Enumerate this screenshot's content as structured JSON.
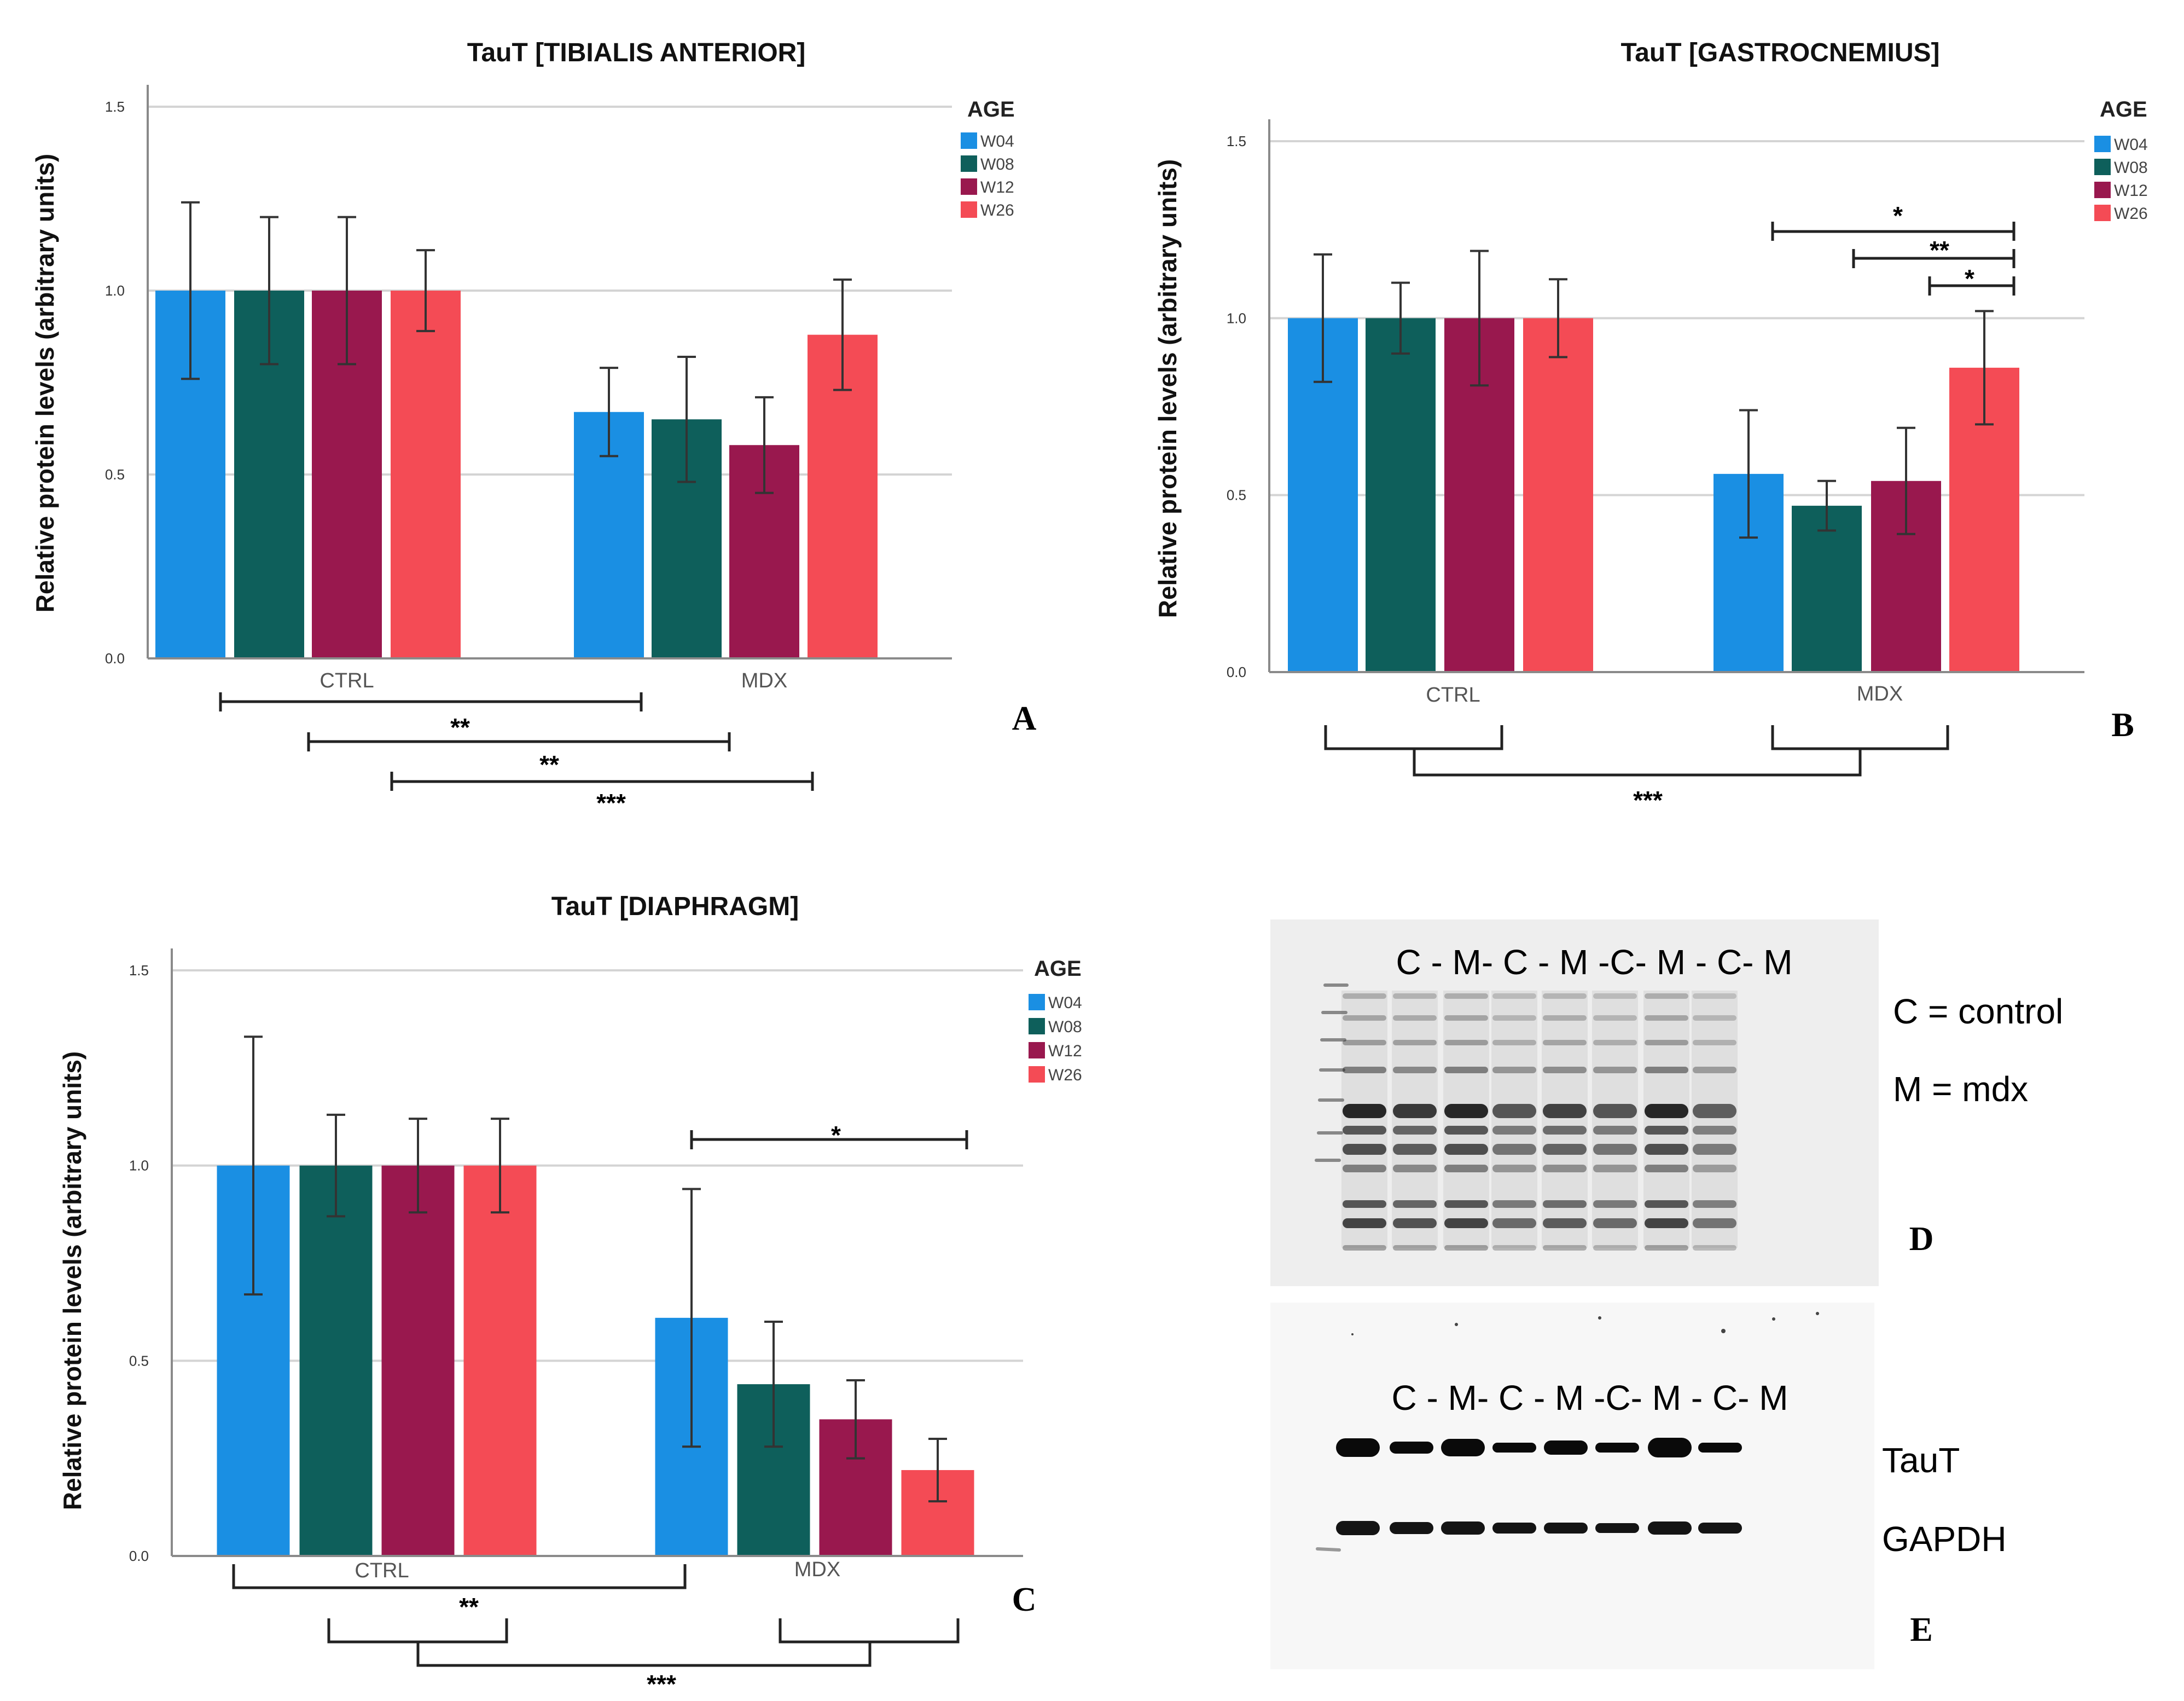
{
  "chart_data": [
    {
      "type": "bar",
      "panel": "A",
      "title": "TauT [TIBIALIS ANTERIOR]",
      "xlabel": "",
      "ylabel": "Relative protein levels (arbitrary units)",
      "ylim": [
        0,
        1.5
      ],
      "yticks": [
        "0.0",
        "0.5",
        "1.0",
        "1.5"
      ],
      "categories": [
        "CTRL",
        "MDX"
      ],
      "legend_title": "AGE",
      "legend_position": "top-right",
      "series": [
        {
          "name": "W04",
          "values": [
            1.0,
            0.67
          ],
          "err": [
            0.24,
            0.12
          ]
        },
        {
          "name": "W08",
          "values": [
            1.0,
            0.65
          ],
          "err": [
            0.2,
            0.17
          ]
        },
        {
          "name": "W12",
          "values": [
            1.0,
            0.58
          ],
          "err": [
            0.2,
            0.13
          ]
        },
        {
          "name": "W26",
          "values": [
            1.0,
            0.88
          ],
          "err": [
            0.11,
            0.15
          ]
        }
      ],
      "significance": [
        "**",
        "**",
        "***"
      ]
    },
    {
      "type": "bar",
      "panel": "B",
      "title": "TauT [GASTROCNEMIUS]",
      "xlabel": "",
      "ylabel": "Relative protein levels (arbitrary units)",
      "ylim": [
        0,
        1.5
      ],
      "yticks": [
        "0.0",
        "0.5",
        "1.0",
        "1.5"
      ],
      "categories": [
        "CTRL",
        "MDX"
      ],
      "legend_title": "AGE",
      "legend_position": "top-right",
      "series": [
        {
          "name": "W04",
          "values": [
            1.0,
            0.56
          ],
          "err": [
            0.18,
            0.18
          ]
        },
        {
          "name": "W08",
          "values": [
            1.0,
            0.47
          ],
          "err": [
            0.1,
            0.07
          ]
        },
        {
          "name": "W12",
          "values": [
            1.0,
            0.54
          ],
          "err": [
            0.19,
            0.15
          ]
        },
        {
          "name": "W26",
          "values": [
            1.0,
            0.86
          ],
          "err": [
            0.11,
            0.16
          ]
        }
      ],
      "significance": [
        "*",
        "**",
        "*",
        "***"
      ]
    },
    {
      "type": "bar",
      "panel": "C",
      "title": "TauT [DIAPHRAGM]",
      "xlabel": "",
      "ylabel": "Relative protein levels (arbitrary units)",
      "ylim": [
        0,
        1.5
      ],
      "yticks": [
        "0.0",
        "0.5",
        "1.0",
        "1.5"
      ],
      "categories": [
        "CTRL",
        "MDX"
      ],
      "legend_title": "AGE",
      "legend_position": "top-right",
      "series": [
        {
          "name": "W04",
          "values": [
            1.0,
            0.61
          ],
          "err": [
            0.33,
            0.33
          ]
        },
        {
          "name": "W08",
          "values": [
            1.0,
            0.44
          ],
          "err": [
            0.13,
            0.16
          ]
        },
        {
          "name": "W12",
          "values": [
            1.0,
            0.35
          ],
          "err": [
            0.12,
            0.1
          ]
        },
        {
          "name": "W26",
          "values": [
            1.0,
            0.22
          ],
          "err": [
            0.12,
            0.08
          ]
        }
      ],
      "significance": [
        "*",
        "**",
        "***"
      ]
    }
  ],
  "colors": {
    "W04": "#1A8FE3",
    "W08": "#0E5F5B",
    "W12": "#99184E",
    "W26": "#F44B55",
    "grid": "#d4d4d4",
    "axis": "#8a8a8a"
  },
  "blots": {
    "D": {
      "panel": "D",
      "lane_labels": "C - M- C - M -C- M - C- M",
      "legend_control": "C = control",
      "legend_mdx": "M = mdx"
    },
    "E": {
      "panel": "E",
      "lane_labels": "C - M- C - M -C- M - C- M",
      "band_labels": [
        "TauT",
        "GAPDH"
      ]
    }
  }
}
